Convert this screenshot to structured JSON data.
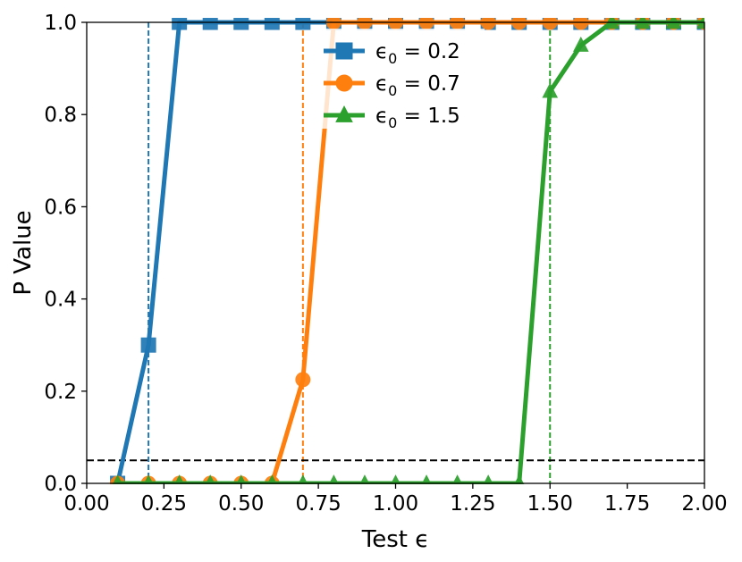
{
  "chart_data": {
    "type": "line",
    "xlabel": "Test ϵ",
    "ylabel": "P Value",
    "xlim": [
      0.0,
      2.0
    ],
    "ylim": [
      0.0,
      1.0
    ],
    "xticks": [
      "0.00",
      "0.25",
      "0.50",
      "0.75",
      "1.00",
      "1.25",
      "1.50",
      "1.75",
      "2.00"
    ],
    "yticks": [
      "0.0",
      "0.2",
      "0.4",
      "0.6",
      "0.8",
      "1.0"
    ],
    "grid": false,
    "legend_position": "top-center",
    "threshold_line": {
      "y": 0.05,
      "color": "#000000",
      "style": "dashed"
    },
    "series": [
      {
        "name": "ϵ0 = 0.2",
        "legend_parts": {
          "sym": "ϵ",
          "sub": "0",
          "rest": " = 0.2"
        },
        "color": "#1f77b4",
        "marker": "square",
        "epsilon0": 0.2,
        "x": [
          0.1,
          0.2,
          0.3,
          0.4,
          0.5,
          0.6,
          0.7,
          0.8,
          0.9,
          1.0,
          1.1,
          1.2,
          1.3,
          1.4,
          1.5,
          1.6,
          1.7,
          1.8,
          1.9,
          2.0
        ],
        "y": [
          0.0,
          0.3,
          1.0,
          1.0,
          1.0,
          1.0,
          1.0,
          1.0,
          1.0,
          1.0,
          1.0,
          1.0,
          1.0,
          1.0,
          1.0,
          1.0,
          1.0,
          1.0,
          1.0,
          1.0
        ]
      },
      {
        "name": "ϵ0 = 0.7",
        "legend_parts": {
          "sym": "ϵ",
          "sub": "0",
          "rest": " = 0.7"
        },
        "color": "#ff7f0e",
        "marker": "circle",
        "epsilon0": 0.7,
        "x": [
          0.1,
          0.2,
          0.3,
          0.4,
          0.5,
          0.6,
          0.7,
          0.8,
          0.9,
          1.0,
          1.1,
          1.2,
          1.3,
          1.4,
          1.5,
          1.6,
          1.7,
          1.8,
          1.9,
          2.0
        ],
        "y": [
          0.0,
          0.0,
          0.0,
          0.0,
          0.0,
          0.0,
          0.225,
          1.0,
          1.0,
          1.0,
          1.0,
          1.0,
          1.0,
          1.0,
          1.0,
          1.0,
          1.0,
          1.0,
          1.0,
          1.0
        ]
      },
      {
        "name": "ϵ0 = 1.5",
        "legend_parts": {
          "sym": "ϵ",
          "sub": "0",
          "rest": " = 1.5"
        },
        "color": "#2ca02c",
        "marker": "triangle",
        "epsilon0": 1.5,
        "x": [
          0.1,
          0.2,
          0.3,
          0.4,
          0.5,
          0.6,
          0.7,
          0.8,
          0.9,
          1.0,
          1.1,
          1.2,
          1.3,
          1.4,
          1.5,
          1.6,
          1.7,
          1.8,
          1.9,
          2.0
        ],
        "y": [
          0.0,
          0.0,
          0.0,
          0.0,
          0.0,
          0.0,
          0.0,
          0.0,
          0.0,
          0.0,
          0.0,
          0.0,
          0.0,
          0.0,
          0.85,
          0.95,
          1.0,
          1.0,
          1.0,
          1.0
        ]
      }
    ]
  }
}
